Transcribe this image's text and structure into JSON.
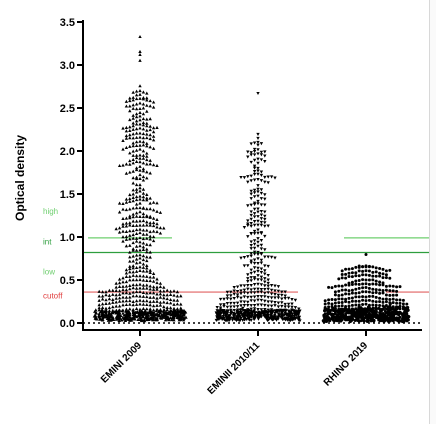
{
  "chart_data": {
    "type": "scatter",
    "ylabel": "Optical density",
    "ylim": [
      -0.1,
      3.5
    ],
    "yticks": [
      0.0,
      0.5,
      1.0,
      1.5,
      2.0,
      2.5,
      3.0,
      3.5
    ],
    "ytick_labels": [
      "0.0",
      "0.5",
      "1.0",
      "1.5",
      "2.0",
      "2.5",
      "3.0",
      "3.5"
    ],
    "categories": [
      "EMINI 2009",
      "EMINII 2010/11",
      "RHINO 2019"
    ],
    "series": [
      {
        "category": "EMINI 2009",
        "marker": "triangle-up",
        "n_points": 900,
        "max": 3.33,
        "values_sample": [
          3.33,
          3.15,
          3.12,
          3.05,
          2.75,
          2.62,
          2.4,
          2.2,
          2.1,
          1.9,
          1.7,
          1.5,
          1.3,
          1.1,
          0.9,
          0.7,
          0.5,
          0.35,
          0.25,
          0.15,
          0.1,
          0.08,
          0.06
        ]
      },
      {
        "category": "EMINII 2010/11",
        "marker": "triangle-down",
        "n_points": 700,
        "max": 2.67,
        "values_sample": [
          2.67,
          2.2,
          2.15,
          2.0,
          1.95,
          1.65,
          1.5,
          1.3,
          1.2,
          1.0,
          0.9,
          0.7,
          0.5,
          0.35,
          0.25,
          0.15,
          0.1,
          0.08,
          0.05
        ]
      },
      {
        "category": "RHINO 2019",
        "marker": "dot",
        "n_points": 700,
        "max": 0.8,
        "values_sample": [
          0.8,
          0.65,
          0.6,
          0.5,
          0.45,
          0.4,
          0.35,
          0.3,
          0.25,
          0.2,
          0.15,
          0.1,
          0.08,
          0.05,
          0.03
        ]
      }
    ],
    "reference_lines": [
      {
        "label": "high",
        "color": "#6fcf6f",
        "value": 0.99,
        "segments": [
          [
            0,
            1
          ],
          [
            2,
            2
          ]
        ]
      },
      {
        "label": "int",
        "color": "#2e9e3e",
        "value": 0.82,
        "segments": [
          [
            0,
            2
          ]
        ]
      },
      {
        "label": "low",
        "color": "#6fcf6f",
        "value": 0.82,
        "segments": []
      },
      {
        "label": "cutoff",
        "color": "#e06060",
        "value": 0.36,
        "segments": [
          [
            0,
            1
          ],
          [
            2,
            2
          ]
        ]
      },
      {
        "label": "",
        "color": "#000000",
        "value": 0.0,
        "style": "dotted",
        "segments": [
          [
            0,
            2
          ]
        ]
      }
    ],
    "annotations": [
      {
        "text": "high",
        "color": "#6fcf6f",
        "y": 1.3
      },
      {
        "text": "int",
        "color": "#2e9e3e",
        "y": 0.95
      },
      {
        "text": "low",
        "color": "#6fcf6f",
        "y": 0.6
      },
      {
        "text": "cutoff",
        "color": "#e04040",
        "y": 0.32
      }
    ]
  }
}
